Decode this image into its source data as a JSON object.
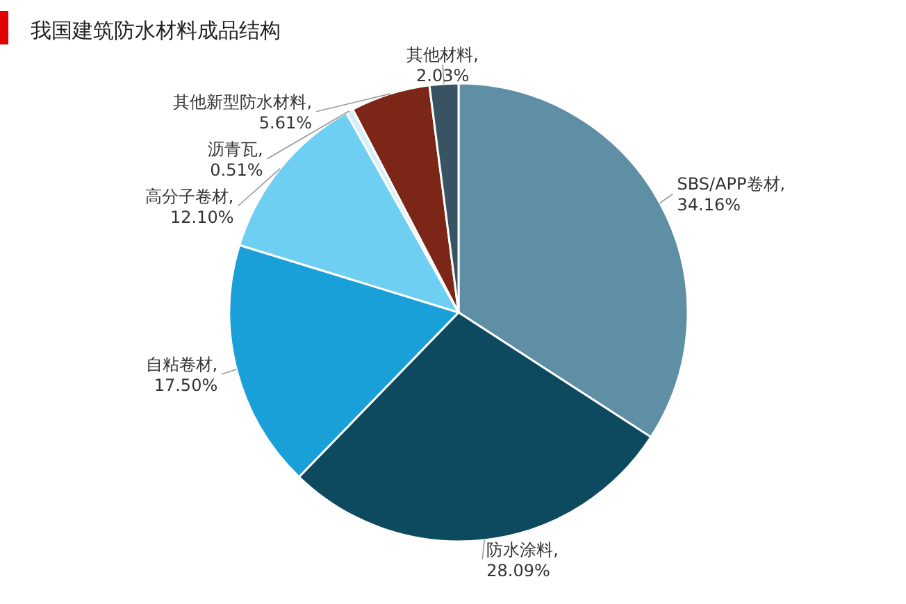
{
  "chart_data": {
    "type": "pie",
    "title": "我国建筑防水材料成品结构",
    "categories": [
      "SBS/APP卷材",
      "防水涂料",
      "自粘卷材",
      "高分子卷材",
      "沥青瓦",
      "其他新型防水材料",
      "其他材料"
    ],
    "values": [
      34.16,
      28.09,
      17.5,
      12.1,
      0.51,
      5.61,
      2.03
    ],
    "value_labels": [
      ", 34.16%",
      ", 28.09%",
      ", 17.50%",
      ", 12.10%",
      ", 0.51%",
      ", 5.61%",
      ", 2.03%"
    ],
    "colors": [
      "#5e8fa5",
      "#0d4a5f",
      "#1aa0d8",
      "#6ecff2",
      "#d6eef7",
      "#7b2616",
      "#385462"
    ]
  }
}
